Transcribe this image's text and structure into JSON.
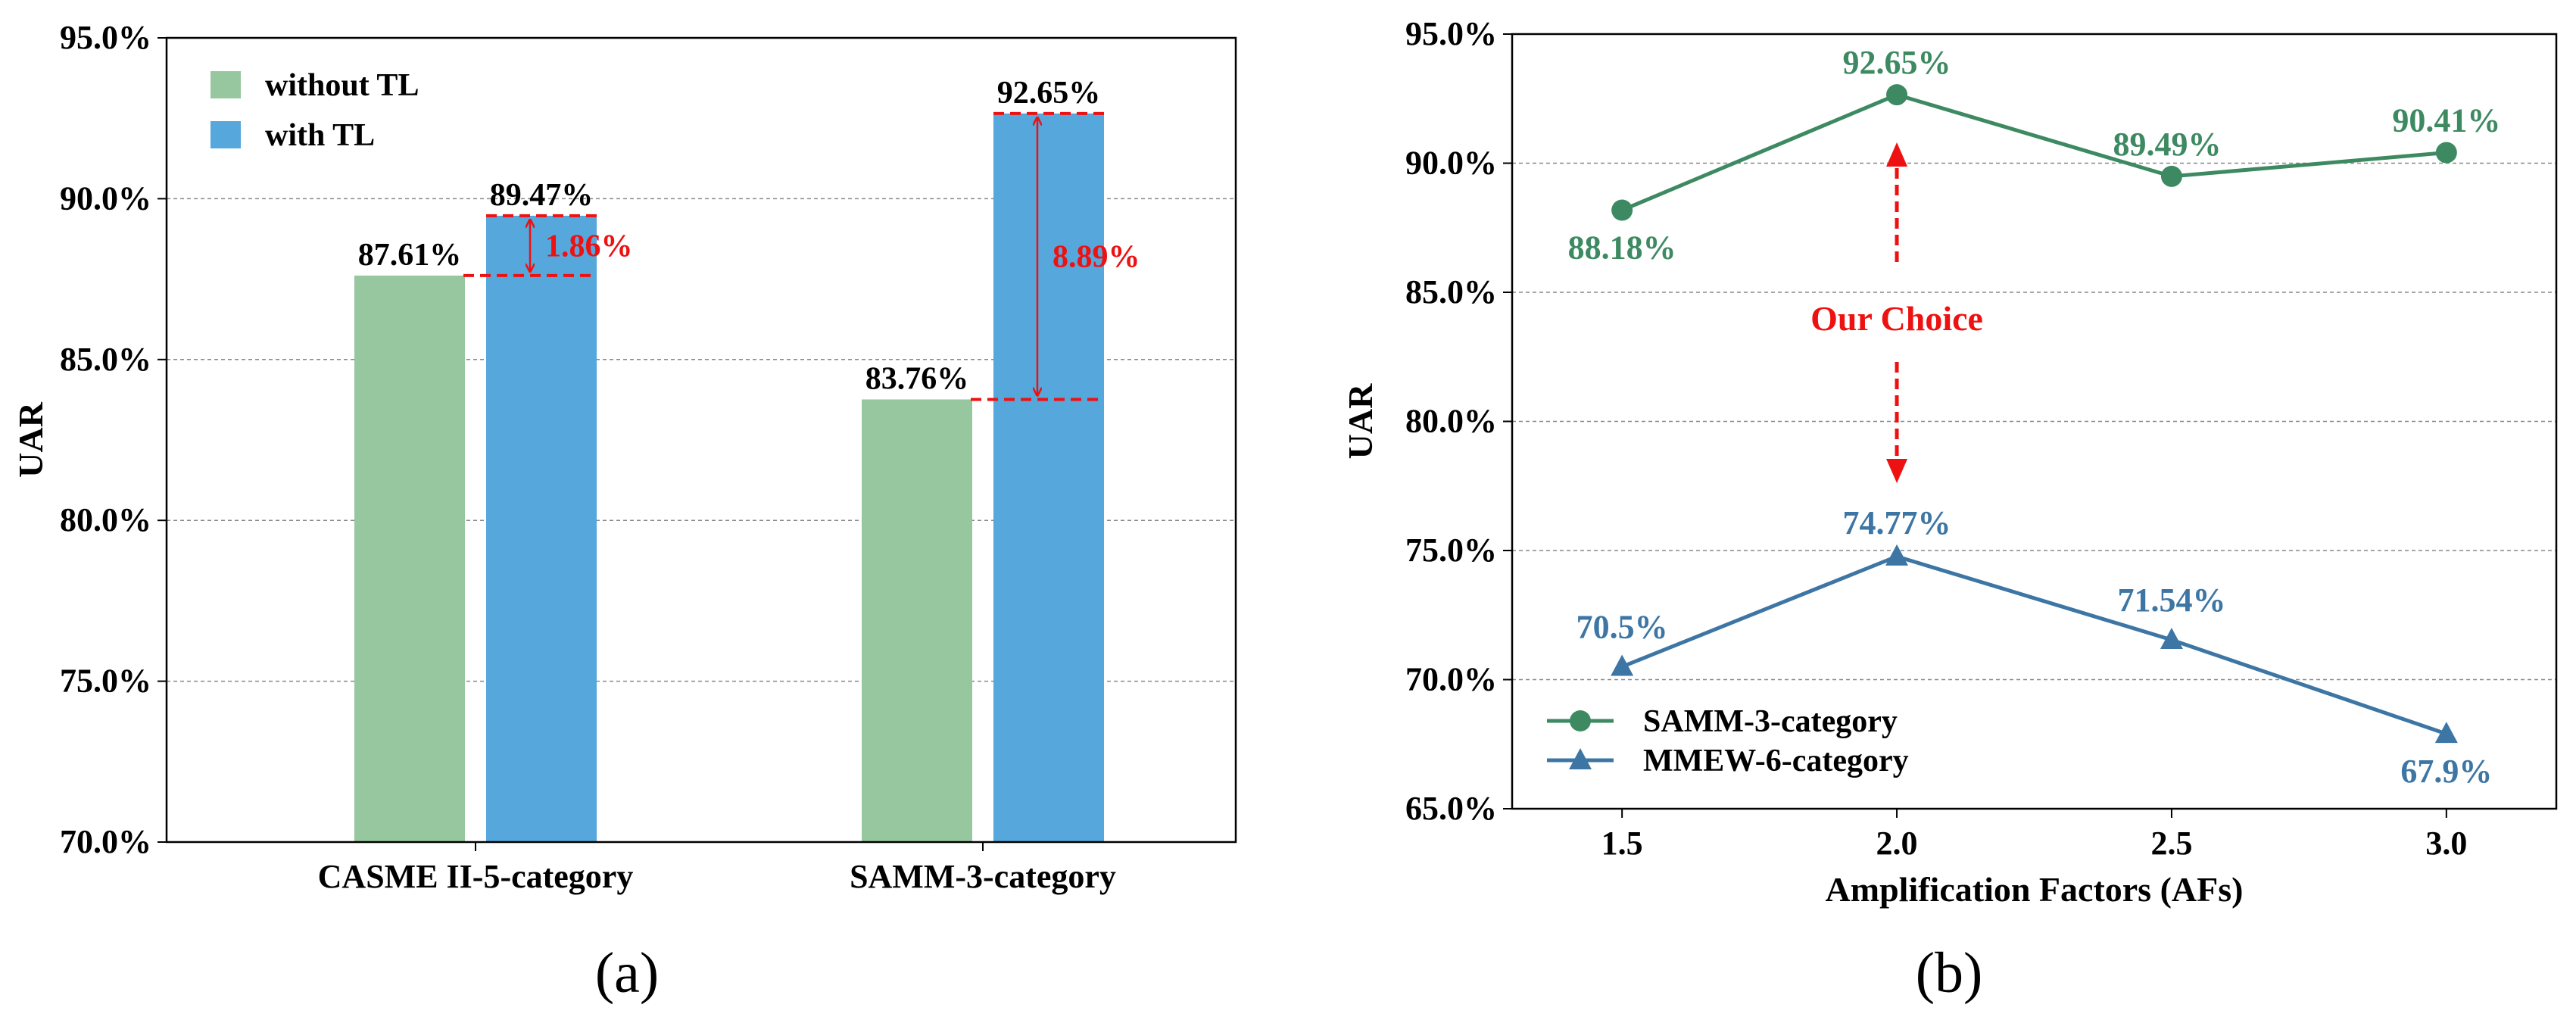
{
  "chart_data": [
    {
      "type": "bar",
      "panel_label": "(a)",
      "title": "",
      "xlabel": "",
      "ylabel": "UAR",
      "ylim": [
        70,
        95
      ],
      "yticks": [
        "70.0%",
        "75.0%",
        "80.0%",
        "85.0%",
        "90.0%",
        "95.0%"
      ],
      "grid": "y-dashed",
      "categories": [
        "CASME II-5-category",
        "SAMM-3-category"
      ],
      "series": [
        {
          "name": "without TL",
          "color": "#96c79e",
          "values": [
            87.61,
            83.76
          ],
          "labels": [
            "87.61%",
            "83.76%"
          ]
        },
        {
          "name": "with TL",
          "color": "#55a7dc",
          "values": [
            89.47,
            92.65
          ],
          "labels": [
            "89.47%",
            "92.65%"
          ]
        }
      ],
      "annotations": [
        {
          "category": "CASME II-5-category",
          "from": 87.61,
          "to": 89.47,
          "text": "1.86%",
          "color": "#ee1111"
        },
        {
          "category": "SAMM-3-category",
          "from": 83.76,
          "to": 92.65,
          "text": "8.89%",
          "color": "#ee1111"
        }
      ],
      "legend": "top-left"
    },
    {
      "type": "line",
      "panel_label": "(b)",
      "title": "",
      "xlabel": "Amplification Factors (AFs)",
      "ylabel": "UAR",
      "xlim": [
        1.3,
        3.2
      ],
      "ylim": [
        65,
        95
      ],
      "x": [
        1.5,
        2.0,
        2.5,
        3.0
      ],
      "xticks": [
        "1.5",
        "2.0",
        "2.5",
        "3.0"
      ],
      "yticks": [
        "65.0%",
        "70.0%",
        "75.0%",
        "80.0%",
        "85.0%",
        "90.0%",
        "95.0%"
      ],
      "grid": "y-dashed",
      "series": [
        {
          "name": "SAMM-3-category",
          "color": "#3d8a62",
          "marker": "circle",
          "values": [
            88.18,
            92.65,
            89.49,
            90.41
          ],
          "labels": [
            "88.18%",
            "92.65%",
            "89.49%",
            "90.41%"
          ]
        },
        {
          "name": "MMEW-6-category",
          "color": "#3d76a4",
          "marker": "triangle",
          "values": [
            70.5,
            74.77,
            71.54,
            67.9
          ],
          "labels": [
            "70.5%",
            "74.77%",
            "71.54%",
            "67.9%"
          ]
        }
      ],
      "annotation": {
        "text": "Our Choice",
        "x": 2.0,
        "color": "#ee1111"
      },
      "legend": "bottom-left"
    }
  ]
}
